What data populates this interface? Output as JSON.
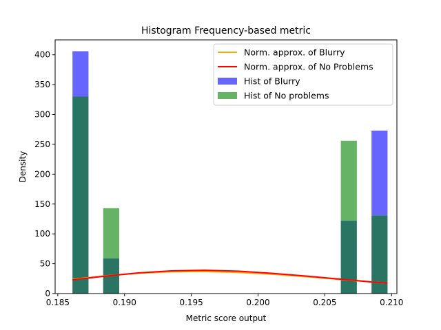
{
  "chart_data": {
    "type": "bar",
    "title": "Histogram Frequency-based metric",
    "xlabel": "Metric score output",
    "ylabel": "Density",
    "xlim": [
      0.1848,
      0.2104
    ],
    "ylim": [
      0,
      425
    ],
    "xticks": [
      0.185,
      0.19,
      0.195,
      0.2,
      0.205,
      0.21
    ],
    "xtick_labels": [
      "0.185",
      "0.190",
      "0.195",
      "0.200",
      "0.205",
      "0.210"
    ],
    "yticks": [
      0,
      50,
      100,
      150,
      200,
      250,
      300,
      350,
      400
    ],
    "ytick_labels": [
      "0",
      "50",
      "100",
      "150",
      "200",
      "250",
      "300",
      "350",
      "400"
    ],
    "legend_position": "upper-right",
    "bins": [
      {
        "start": 0.1861,
        "end": 0.1873
      },
      {
        "start": 0.1884,
        "end": 0.1896
      },
      {
        "start": 0.2062,
        "end": 0.2074
      },
      {
        "start": 0.2085,
        "end": 0.2097
      }
    ],
    "series": [
      {
        "name": "Hist of Blurry",
        "kind": "hist",
        "color": "#6666ff",
        "values": [
          406,
          59,
          122,
          273
        ]
      },
      {
        "name": "Hist of No problems",
        "kind": "hist",
        "color": "#66b366",
        "values": [
          330,
          143,
          256,
          131
        ]
      },
      {
        "name": "Norm. approx. of Blurry",
        "kind": "line",
        "color": "#ffa500",
        "x": [
          0.1861,
          0.1885,
          0.191,
          0.1935,
          0.196,
          0.1985,
          0.201,
          0.2035,
          0.206,
          0.2085,
          0.2097
        ],
        "y": [
          24,
          29.5,
          34,
          36.5,
          37,
          35.5,
          32.5,
          28.5,
          24,
          19.5,
          17.5
        ]
      },
      {
        "name": "Norm. approx. of No Problems",
        "kind": "line",
        "color": "#ff0000",
        "x": [
          0.1861,
          0.1885,
          0.191,
          0.1935,
          0.196,
          0.1985,
          0.201,
          0.2035,
          0.206,
          0.2085,
          0.2097
        ],
        "y": [
          23,
          29,
          34.5,
          38,
          39,
          37.5,
          34,
          29.5,
          24.5,
          19.5,
          17.5
        ]
      }
    ],
    "overlap_color": "#2a7464",
    "grid": false
  }
}
